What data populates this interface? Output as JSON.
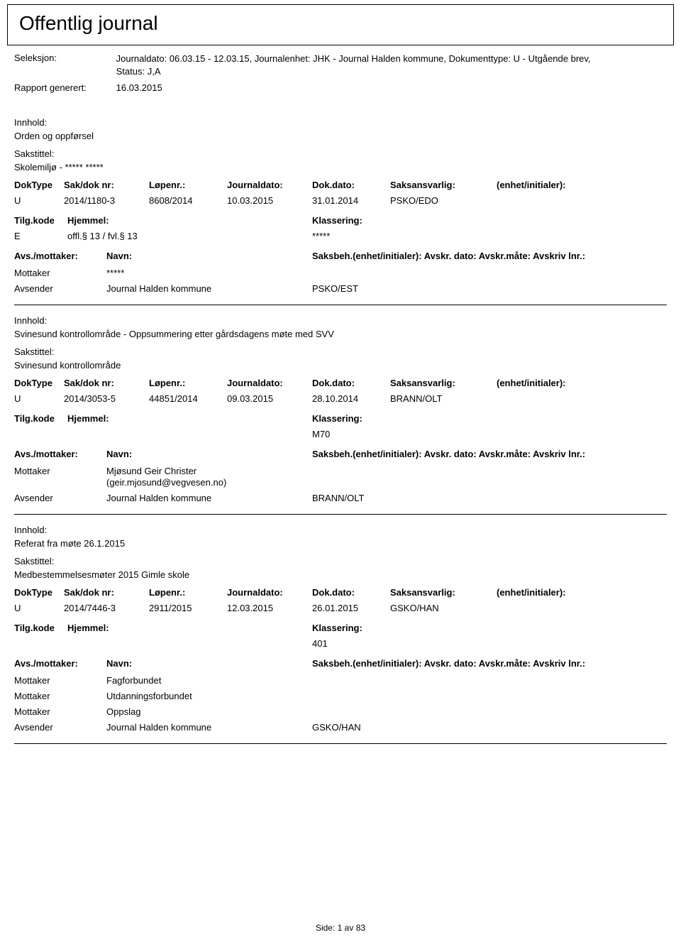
{
  "header": {
    "title": "Offentlig journal",
    "seleksjon_label": "Seleksjon:",
    "seleksjon_value": "Journaldato: 06.03.15 - 12.03.15, Journalenhet: JHK - Journal Halden kommune, Dokumenttype: U - Utgående brev, Status: J,A",
    "rapport_label": "Rapport generert:",
    "rapport_value": "16.03.2015"
  },
  "labels": {
    "innhold": "Innhold:",
    "sakstittel": "Sakstittel:",
    "doktype": "DokType",
    "sakdok": "Sak/dok nr:",
    "lopenr": "Løpenr.:",
    "journaldato": "Journaldato:",
    "dokdato": "Dok.dato:",
    "saksansvarlig": "Saksansvarlig:",
    "enhet": "(enhet/initialer):",
    "tilgkode": "Tilg.kode",
    "hjemmel": "Hjemmel:",
    "klassering": "Klassering:",
    "avsmottaker": "Avs./mottaker:",
    "navn": "Navn:",
    "saksbeh": "Saksbeh.(enhet/initialer): Avskr. dato: Avskr.måte: Avskriv lnr.:",
    "mottaker": "Mottaker",
    "avsender": "Avsender"
  },
  "entries": [
    {
      "innhold": "Orden og oppførsel",
      "sakstittel": "Skolemiljø - ***** *****",
      "doktype": "U",
      "sakdok": "2014/1180-3",
      "lopenr": "8608/2014",
      "journaldato": "10.03.2015",
      "dokdato": "31.01.2014",
      "saksansvarlig": "PSKO/EDO",
      "tilgkode": "E",
      "hjemmel": "offl.§ 13 / fvl.§ 13",
      "klassering": "*****",
      "mottakere": [
        {
          "name": "*****"
        }
      ],
      "avsender_name": "Journal Halden kommune",
      "avsender_code": "PSKO/EST"
    },
    {
      "innhold": "Svinesund kontrollområde - Oppsummering etter gårdsdagens møte med SVV",
      "sakstittel": "Svinesund kontrollområde",
      "doktype": "U",
      "sakdok": "2014/3053-5",
      "lopenr": "44851/2014",
      "journaldato": "09.03.2015",
      "dokdato": "28.10.2014",
      "saksansvarlig": "BRANN/OLT",
      "tilgkode": "",
      "hjemmel": "",
      "klassering": "M70",
      "mottakere": [
        {
          "name": "Mjøsund Geir Christer (geir.mjosund@vegvesen.no)"
        }
      ],
      "avsender_name": "Journal Halden kommune",
      "avsender_code": "BRANN/OLT"
    },
    {
      "innhold": "Referat fra møte 26.1.2015",
      "sakstittel": "Medbestemmelsesmøter 2015 Gimle skole",
      "doktype": "U",
      "sakdok": "2014/7446-3",
      "lopenr": "2911/2015",
      "journaldato": "12.03.2015",
      "dokdato": "26.01.2015",
      "saksansvarlig": "GSKO/HAN",
      "tilgkode": "",
      "hjemmel": "",
      "klassering": "401",
      "mottakere": [
        {
          "name": "Fagforbundet"
        },
        {
          "name": "Utdanningsforbundet"
        },
        {
          "name": "Oppslag"
        }
      ],
      "avsender_name": "Journal Halden kommune",
      "avsender_code": "GSKO/HAN"
    }
  ],
  "footer": {
    "side_label": "Side:",
    "page_current": "1",
    "page_sep": "av",
    "page_total": "83"
  }
}
